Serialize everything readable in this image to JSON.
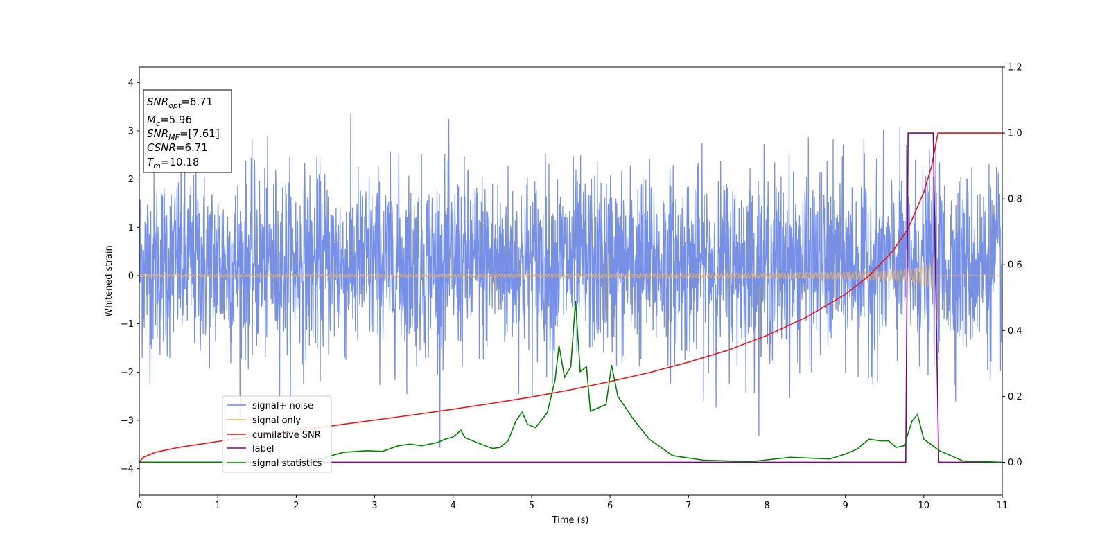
{
  "chart_data": {
    "type": "line",
    "xlabel": "Time (s)",
    "ylabel": "Whitened strain",
    "xlim": [
      0,
      11
    ],
    "ylim": [
      -4.55,
      4.32
    ],
    "y2lim": [
      -0.1,
      1.2
    ],
    "xticks": [
      0,
      1,
      2,
      3,
      4,
      5,
      6,
      7,
      8,
      9,
      10,
      11
    ],
    "yticks": [
      -4,
      -3,
      -2,
      -1,
      0,
      1,
      2,
      3,
      4
    ],
    "y2ticks": [
      0.0,
      0.2,
      0.4,
      0.6,
      0.8,
      1.0,
      1.2
    ],
    "legend_position": "lower-left",
    "infobox": {
      "snr_opt": {
        "base": "SNR",
        "sub": "opt",
        "rest": "=6.71"
      },
      "mc": {
        "base": "M",
        "sub": "c",
        "rest": "=5.96"
      },
      "snr_mf": {
        "base": "SNR",
        "sub": "MF",
        "rest": "=[7.61]"
      },
      "csnr": {
        "base": "CSNR",
        "sub": "",
        "rest": "=6.71"
      },
      "tm": {
        "base": "T",
        "sub": "m",
        "rest": "=10.18"
      }
    },
    "series": [
      {
        "name": "signal+ noise",
        "color": "#6f8ae6",
        "axis": "left",
        "style": "noise-band",
        "description_values": {
          "x_range": [
            0,
            11
          ],
          "typical_range": [
            -2.5,
            3.2
          ],
          "extremes": [
            -4.05,
            3.93
          ]
        }
      },
      {
        "name": "signal only",
        "color": "#f5b454",
        "axis": "left",
        "style": "chirp",
        "description_values": {
          "x_range": [
            0,
            10.18
          ],
          "peak_amplitude": 0.9,
          "merger_time": 10.18
        }
      },
      {
        "name": "cumilative SNR",
        "color": "#ee1111",
        "axis": "right",
        "x": [
          0,
          0.05,
          0.2,
          0.5,
          1,
          1.5,
          2,
          2.5,
          3,
          3.5,
          4,
          4.5,
          5,
          5.5,
          6,
          6.5,
          7,
          7.5,
          8,
          8.5,
          9,
          9.3,
          9.6,
          9.8,
          10,
          10.1,
          10.18,
          11
        ],
        "y": [
          0.0,
          0.015,
          0.03,
          0.045,
          0.063,
          0.08,
          0.096,
          0.112,
          0.128,
          0.144,
          0.161,
          0.179,
          0.198,
          0.22,
          0.245,
          0.272,
          0.304,
          0.34,
          0.385,
          0.44,
          0.51,
          0.566,
          0.64,
          0.71,
          0.82,
          0.9,
          1.0,
          1.0
        ]
      },
      {
        "name": "label",
        "color": "#800080",
        "axis": "right",
        "x": [
          0,
          9.77,
          9.8,
          10.12,
          10.19,
          11
        ],
        "y": [
          0,
          0,
          1,
          1,
          0,
          0
        ]
      },
      {
        "name": "signal statistics",
        "color": "#008000",
        "axis": "right",
        "x": [
          0,
          1,
          2,
          2.3,
          2.6,
          2.9,
          3.1,
          3.3,
          3.45,
          3.6,
          3.8,
          3.9,
          4,
          4.1,
          4.15,
          4.3,
          4.5,
          4.6,
          4.7,
          4.8,
          4.88,
          4.95,
          5.05,
          5.2,
          5.3,
          5.35,
          5.42,
          5.5,
          5.56,
          5.62,
          5.7,
          5.75,
          5.85,
          5.95,
          6.02,
          6.1,
          6.3,
          6.5,
          6.8,
          7.2,
          7.8,
          8.3,
          8.8,
          9.0,
          9.15,
          9.3,
          9.45,
          9.55,
          9.65,
          9.75,
          9.85,
          9.92,
          10.0,
          10.2,
          10.5,
          11
        ],
        "y": [
          0,
          0,
          0.002,
          0.01,
          0.03,
          0.035,
          0.033,
          0.05,
          0.055,
          0.05,
          0.06,
          0.07,
          0.077,
          0.097,
          0.075,
          0.06,
          0.042,
          0.045,
          0.065,
          0.125,
          0.152,
          0.115,
          0.105,
          0.15,
          0.25,
          0.355,
          0.258,
          0.29,
          0.49,
          0.275,
          0.29,
          0.155,
          0.165,
          0.175,
          0.295,
          0.2,
          0.13,
          0.07,
          0.02,
          0.006,
          0.002,
          0.015,
          0.01,
          0.025,
          0.04,
          0.07,
          0.065,
          0.065,
          0.045,
          0.05,
          0.125,
          0.145,
          0.07,
          0.035,
          0.004,
          0.0
        ]
      }
    ]
  }
}
